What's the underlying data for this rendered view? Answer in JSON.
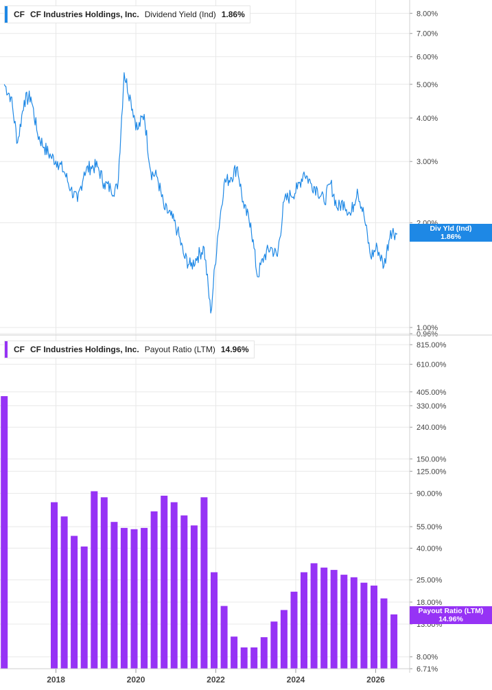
{
  "colors": {
    "yield_line": "#1e88e5",
    "payout_bar": "#9633f5",
    "grid": "#e8e8e8",
    "axis_text": "#444444"
  },
  "legend_top": {
    "ticker": "CF",
    "company": "CF Industries Holdings, Inc.",
    "metric": "Dividend Yield (Ind)",
    "value": "1.86%"
  },
  "legend_bottom": {
    "ticker": "CF",
    "company": "CF Industries Holdings, Inc.",
    "metric": "Payout Ratio (LTM)",
    "value": "14.96%"
  },
  "badge_top": {
    "label": "Div Yld (Ind)",
    "value": "1.86%"
  },
  "badge_bottom": {
    "label": "Payout Ratio (LTM)",
    "value": "14.96%"
  },
  "chart_data": [
    {
      "type": "line",
      "scale": "log",
      "series": [
        {
          "name": "Dividend Yield (Ind)",
          "x": [
            "2016-09",
            "2016-11",
            "2017-01",
            "2017-03",
            "2017-05",
            "2017-07",
            "2017-09",
            "2017-11",
            "2018-01",
            "2018-03",
            "2018-05",
            "2018-07",
            "2018-09",
            "2018-11",
            "2019-01",
            "2019-03",
            "2019-05",
            "2019-07",
            "2019-09",
            "2019-11",
            "2020-01",
            "2020-03",
            "2020-05",
            "2020-07",
            "2020-09",
            "2020-11",
            "2021-01",
            "2021-03",
            "2021-05",
            "2021-07",
            "2021-09",
            "2021-11",
            "2022-01",
            "2022-03",
            "2022-05",
            "2022-07",
            "2022-09",
            "2022-11",
            "2023-01",
            "2023-03",
            "2023-05",
            "2023-07",
            "2023-09",
            "2023-11",
            "2024-01",
            "2024-03",
            "2024-05",
            "2024-07",
            "2024-09",
            "2024-11",
            "2025-01",
            "2025-03",
            "2025-05",
            "2025-07",
            "2025-09",
            "2025-11",
            "2026-01",
            "2026-03",
            "2026-05",
            "2026-07"
          ],
          "values": [
            5.0,
            4.6,
            3.4,
            4.5,
            4.6,
            3.6,
            3.3,
            3.1,
            3.0,
            2.8,
            2.5,
            2.3,
            2.8,
            2.9,
            2.9,
            2.6,
            2.5,
            2.5,
            5.4,
            4.5,
            3.7,
            4.1,
            2.8,
            2.7,
            2.2,
            2.1,
            1.9,
            1.6,
            1.5,
            1.6,
            1.7,
            1.1,
            1.8,
            2.6,
            2.7,
            2.9,
            2.2,
            2.0,
            1.4,
            1.6,
            1.7,
            1.6,
            2.3,
            2.4,
            2.5,
            2.8,
            2.6,
            2.5,
            2.3,
            2.6,
            2.2,
            2.3,
            2.1,
            2.5,
            2.1,
            1.6,
            1.7,
            1.5,
            1.9,
            1.86
          ]
        }
      ],
      "y_ticks": [
        "8.00%",
        "7.00%",
        "6.00%",
        "5.00%",
        "4.00%",
        "3.00%",
        "2.00%",
        "1.00%",
        "0.96%"
      ],
      "ylim": [
        0.96,
        8.5
      ]
    },
    {
      "type": "bar",
      "scale": "log",
      "series": [
        {
          "name": "Payout Ratio (LTM)",
          "x": [
            "2016-09",
            "2017-12",
            "2018-03",
            "2018-06",
            "2018-09",
            "2018-12",
            "2019-03",
            "2019-06",
            "2019-09",
            "2019-12",
            "2020-03",
            "2020-06",
            "2020-09",
            "2020-12",
            "2021-03",
            "2021-06",
            "2021-09",
            "2021-12",
            "2022-03",
            "2022-06",
            "2022-09",
            "2022-12",
            "2023-03",
            "2023-06",
            "2023-09",
            "2023-12",
            "2024-03",
            "2024-06",
            "2024-09",
            "2024-12",
            "2025-03",
            "2025-06",
            "2025-09",
            "2025-12",
            "2026-03",
            "2026-06"
          ],
          "values": [
            380,
            79,
            64,
            48,
            41,
            93,
            85,
            59,
            54,
            53,
            54,
            69,
            87,
            79,
            65,
            56,
            85,
            28,
            17,
            10.8,
            9.2,
            9.2,
            10.7,
            13.5,
            16,
            21,
            28,
            32,
            30,
            29,
            27,
            26,
            24,
            23,
            19,
            15
          ]
        }
      ],
      "y_ticks": [
        "815.00%",
        "610.00%",
        "405.00%",
        "330.00%",
        "240.00%",
        "150.00%",
        "125.00%",
        "90.00%",
        "55.00%",
        "40.00%",
        "25.00%",
        "18.00%",
        "13.00%",
        "8.00%",
        "6.71%"
      ],
      "ylim": [
        6.71,
        815
      ]
    }
  ],
  "x_axis": {
    "ticks": [
      "2018",
      "2020",
      "2022",
      "2024",
      "2026"
    ]
  }
}
